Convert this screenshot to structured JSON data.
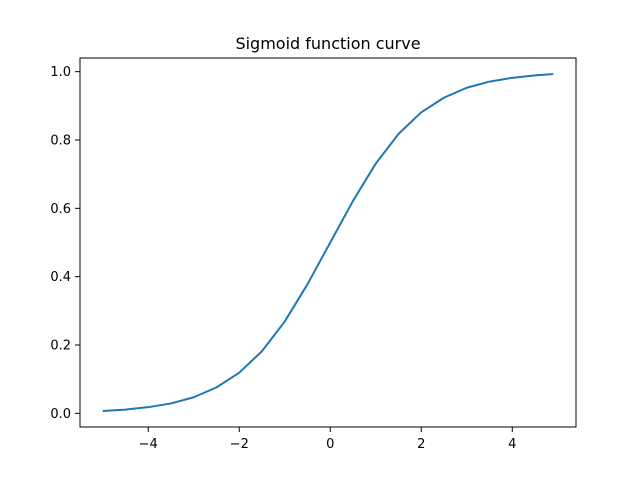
{
  "chart_data": {
    "type": "line",
    "title": "Sigmoid function curve",
    "xlabel": "",
    "ylabel": "",
    "xlim": [
      -5.5,
      5.4
    ],
    "ylim": [
      -0.04,
      1.04
    ],
    "xticks": [
      -4,
      -2,
      0,
      2,
      4
    ],
    "xtick_labels": [
      "−4",
      "−2",
      "0",
      "2",
      "4"
    ],
    "yticks": [
      0.0,
      0.2,
      0.4,
      0.6,
      0.8,
      1.0
    ],
    "ytick_labels": [
      "0.0",
      "0.2",
      "0.4",
      "0.6",
      "0.8",
      "1.0"
    ],
    "grid": false,
    "legend": "none",
    "series": [
      {
        "color": "#1f77b4",
        "x": [
          -5.0,
          -4.5,
          -4.0,
          -3.5,
          -3.0,
          -2.5,
          -2.0,
          -1.5,
          -1.0,
          -0.5,
          0.0,
          0.5,
          1.0,
          1.5,
          2.0,
          2.5,
          3.0,
          3.5,
          4.0,
          4.5,
          4.9
        ],
        "y": [
          0.0067,
          0.011,
          0.018,
          0.029,
          0.047,
          0.076,
          0.119,
          0.182,
          0.269,
          0.378,
          0.5,
          0.622,
          0.731,
          0.818,
          0.881,
          0.924,
          0.953,
          0.971,
          0.982,
          0.989,
          0.993
        ]
      }
    ]
  }
}
